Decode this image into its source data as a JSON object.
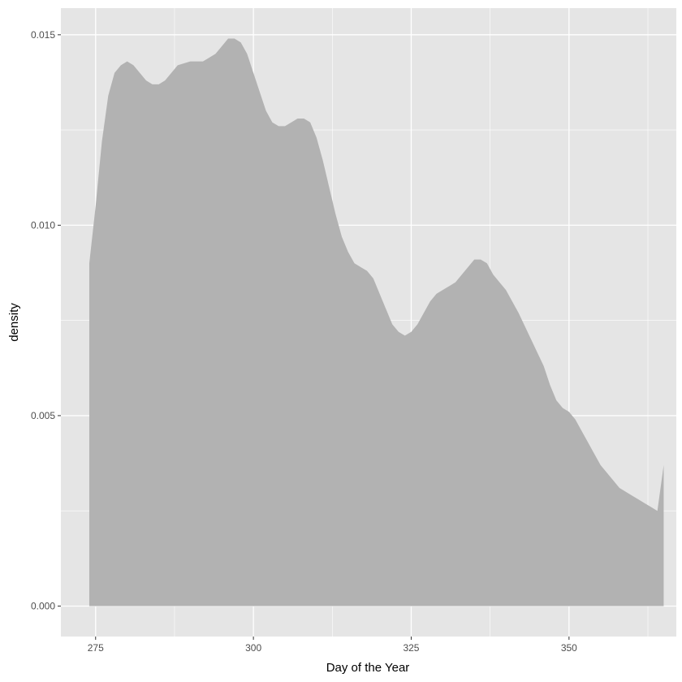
{
  "chart_data": {
    "type": "area",
    "title": "",
    "xlabel": "Day of the Year",
    "ylabel": "density",
    "xlim": [
      269.5,
      367
    ],
    "ylim": [
      -0.0008,
      0.0157
    ],
    "x_ticks": [
      275,
      300,
      325,
      350
    ],
    "x_tick_labels": [
      "275",
      "300",
      "325",
      "350"
    ],
    "y_ticks": [
      0.0,
      0.005,
      0.01,
      0.015
    ],
    "y_tick_labels": [
      "0.000",
      "0.005",
      "0.010",
      "0.015"
    ],
    "grid": true,
    "legend": "none",
    "colors": {
      "panel_background": "#e5e5e5",
      "gridline": "#ffffff",
      "fill": "#b2b2b2"
    },
    "series": [
      {
        "x": [
          274,
          275,
          276,
          277,
          278,
          279,
          280,
          281,
          282,
          283,
          284,
          285,
          286,
          287,
          288,
          290,
          292,
          294,
          295,
          296,
          297,
          298,
          299,
          300,
          301,
          302,
          303,
          304,
          305,
          306,
          307,
          308,
          309,
          310,
          311,
          312,
          313,
          314,
          315,
          316,
          317,
          318,
          319,
          320,
          321,
          322,
          323,
          324,
          325,
          326,
          327,
          328,
          329,
          330,
          331,
          332,
          333,
          334,
          335,
          336,
          337,
          338,
          340,
          342,
          344,
          346,
          347,
          348,
          349,
          350,
          351,
          352,
          353,
          354,
          355,
          356,
          357,
          358,
          359,
          360,
          361,
          362,
          363,
          364,
          365
        ],
        "y": [
          0.009,
          0.0105,
          0.0122,
          0.0134,
          0.014,
          0.0142,
          0.0143,
          0.0142,
          0.014,
          0.0138,
          0.0137,
          0.0137,
          0.0138,
          0.014,
          0.0142,
          0.0143,
          0.0143,
          0.0145,
          0.0147,
          0.0149,
          0.0149,
          0.0148,
          0.0145,
          0.014,
          0.0135,
          0.013,
          0.0127,
          0.0126,
          0.0126,
          0.0127,
          0.0128,
          0.0128,
          0.0127,
          0.0123,
          0.0117,
          0.011,
          0.0103,
          0.0097,
          0.0093,
          0.009,
          0.0089,
          0.0088,
          0.0086,
          0.0082,
          0.0078,
          0.0074,
          0.0072,
          0.0071,
          0.0072,
          0.0074,
          0.0077,
          0.008,
          0.0082,
          0.0083,
          0.0084,
          0.0085,
          0.0087,
          0.0089,
          0.0091,
          0.0091,
          0.009,
          0.0087,
          0.0083,
          0.0077,
          0.007,
          0.0063,
          0.0058,
          0.0054,
          0.0052,
          0.0051,
          0.0049,
          0.0046,
          0.0043,
          0.004,
          0.0037,
          0.0035,
          0.0033,
          0.0031,
          0.003,
          0.0029,
          0.0028,
          0.0027,
          0.0026,
          0.0025,
          0.0037
        ]
      }
    ]
  }
}
